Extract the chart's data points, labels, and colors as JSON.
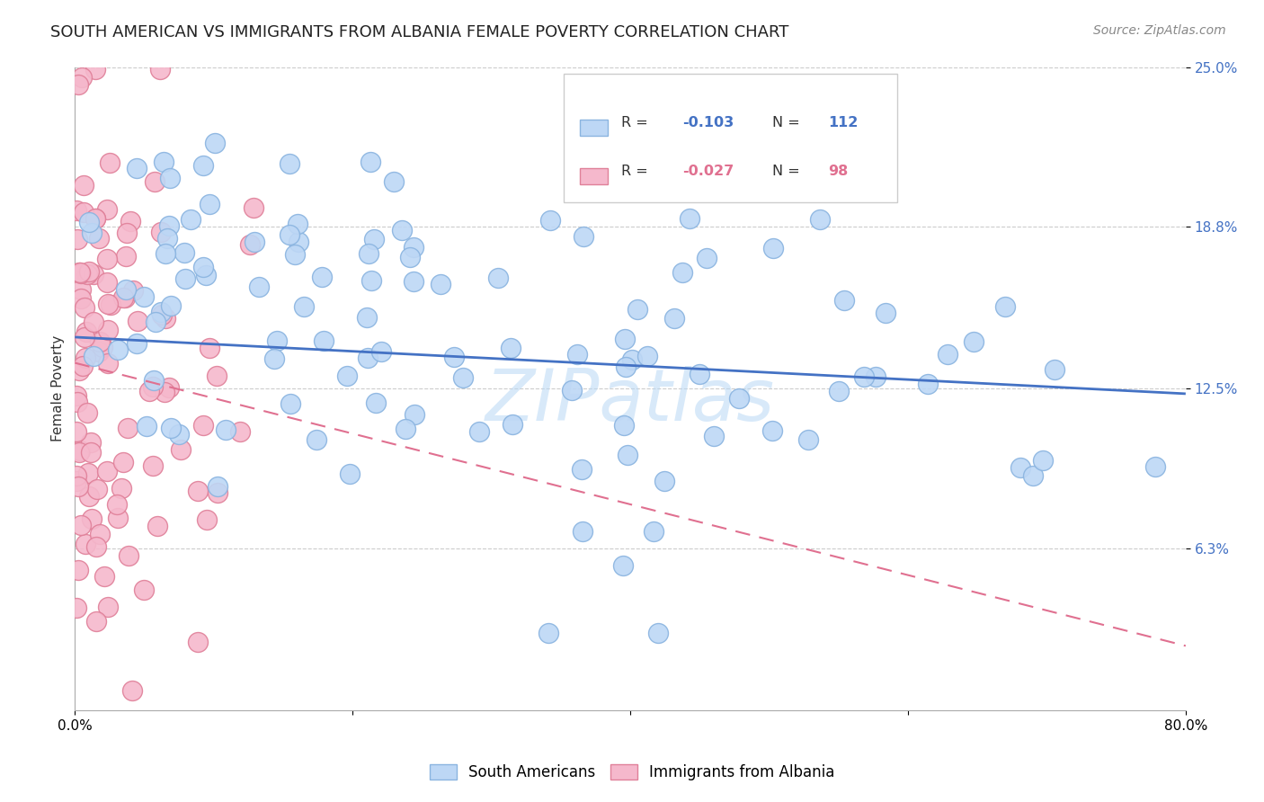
{
  "title": "SOUTH AMERICAN VS IMMIGRANTS FROM ALBANIA FEMALE POVERTY CORRELATION CHART",
  "source": "Source: ZipAtlas.com",
  "ylabel": "Female Poverty",
  "xlim": [
    0.0,
    0.8
  ],
  "ylim": [
    0.0,
    0.25
  ],
  "series1_label": "South Americans",
  "series1_color": "#bdd7f5",
  "series1_edge": "#8ab4e0",
  "series1_R": "-0.103",
  "series1_N": "112",
  "series1_line_color": "#4472c4",
  "series2_label": "Immigrants from Albania",
  "series2_color": "#f5b8cc",
  "series2_edge": "#e08099",
  "series2_R": "-0.027",
  "series2_N": "98",
  "series2_line_color": "#e07090",
  "watermark": "ZIPatlas",
  "background_color": "#ffffff",
  "grid_color": "#cccccc",
  "title_fontsize": 13,
  "source_fontsize": 10,
  "label_fontsize": 11,
  "tick_fontsize": 11,
  "tick_color": "#4472c4",
  "blue_trend_y0": 0.145,
  "blue_trend_y1": 0.123,
  "pink_trend_y0": 0.135,
  "pink_trend_y1": 0.025
}
